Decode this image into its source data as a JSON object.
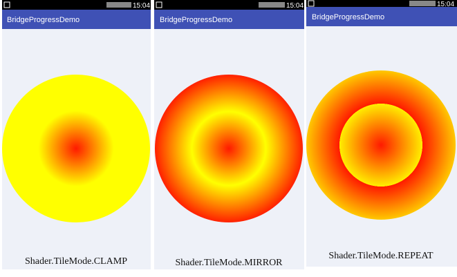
{
  "panels": [
    {
      "status_time": "15:04",
      "app_title": "BridgeProgressDemo",
      "caption": "Shader.TileMode.CLAMP"
    },
    {
      "status_time": "15:04",
      "app_title": "BridgeProgressDemo",
      "caption": "Shader.TileMode.MIRROR"
    },
    {
      "status_time": "15:04",
      "app_title": "BridgeProgressDemo",
      "caption": "Shader.TileMode.REPEAT"
    }
  ]
}
